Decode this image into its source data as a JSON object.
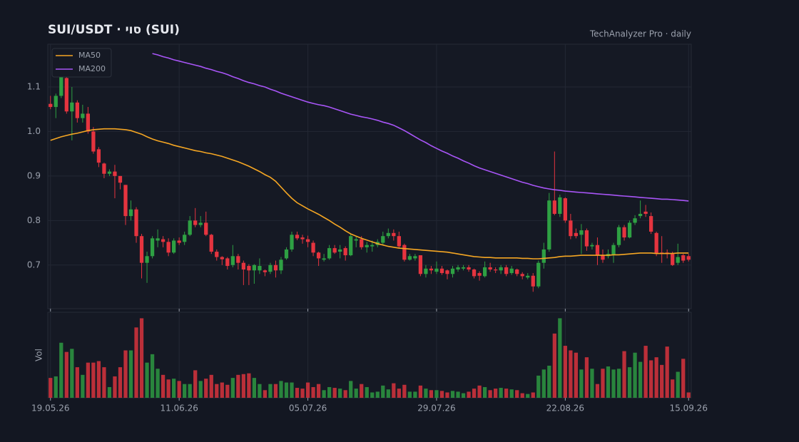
{
  "chart_data": {
    "type": "candlestick",
    "title": "SUI/USDT  ·  סוי (SUI)",
    "subtitle": "TechAnalyzer Pro · daily",
    "volume_label": "Vol",
    "up_color": "#2ea043",
    "down_color": "#e5343f",
    "grid": true,
    "legend": "upper left",
    "xlim": [
      -0.5,
      119.5
    ],
    "xticks": [
      {
        "value": 0,
        "label": "19.05.26"
      },
      {
        "value": 24,
        "label": "11.06.26"
      },
      {
        "value": 48,
        "label": "05.07.26"
      },
      {
        "value": 72,
        "label": "29.07.26"
      },
      {
        "value": 96,
        "label": "22.08.26"
      },
      {
        "value": 119,
        "label": "15.09.26"
      }
    ],
    "ylim": [
      0.602,
      1.196
    ],
    "yticks": [
      0.7,
      0.8,
      0.9,
      {
        "value": 1.0,
        "label": "1.0"
      },
      1.1
    ],
    "volume_ylim": [
      0,
      110
    ],
    "open": [
      1.062,
      1.055,
      1.08,
      1.12,
      1.045,
      1.065,
      1.03,
      1.04,
      1.0,
      0.96,
      0.928,
      0.905,
      0.91,
      0.9,
      0.88,
      0.81,
      0.825,
      0.765,
      0.705,
      0.72,
      0.755,
      0.758,
      0.752,
      0.728,
      0.755,
      0.752,
      0.768,
      0.8,
      0.79,
      0.795,
      0.768,
      0.73,
      0.718,
      0.715,
      0.7,
      0.72,
      0.705,
      0.698,
      0.688,
      0.688,
      0.688,
      0.685,
      0.7,
      0.688,
      0.715,
      0.735,
      0.768,
      0.762,
      0.758,
      0.75,
      0.728,
      0.712,
      0.715,
      0.738,
      0.73,
      0.738,
      0.722,
      0.755,
      0.758,
      0.74,
      0.742,
      0.745,
      0.75,
      0.765,
      0.772,
      0.765,
      0.745,
      0.712,
      0.715,
      0.722,
      0.68,
      0.692,
      0.685,
      0.692,
      0.688,
      0.68,
      0.69,
      0.692,
      0.695,
      0.69,
      0.682,
      0.675,
      0.695,
      0.69,
      0.688,
      0.695,
      0.682,
      0.69,
      0.68,
      0.672,
      0.676,
      0.652,
      0.705,
      0.735,
      0.845,
      0.815,
      0.85,
      0.8,
      0.772,
      0.768,
      0.778,
      0.742,
      0.745,
      0.722,
      0.72,
      0.722,
      0.745,
      0.785,
      0.762,
      0.795,
      0.81,
      0.82,
      0.81,
      0.772,
      0.728,
      0.728,
      0.725,
      0.705,
      0.722,
      0.72
    ],
    "high": [
      1.08,
      1.085,
      1.14,
      1.13,
      1.1,
      1.07,
      1.06,
      1.055,
      1.01,
      0.965,
      0.93,
      0.915,
      0.925,
      0.9,
      0.88,
      0.845,
      0.83,
      0.77,
      0.73,
      0.765,
      0.78,
      0.765,
      0.76,
      0.76,
      0.762,
      0.775,
      0.81,
      0.828,
      0.81,
      0.82,
      0.77,
      0.735,
      0.72,
      0.718,
      0.745,
      0.725,
      0.71,
      0.702,
      0.702,
      0.715,
      0.69,
      0.705,
      0.71,
      0.718,
      0.74,
      0.775,
      0.775,
      0.768,
      0.766,
      0.755,
      0.73,
      0.725,
      0.745,
      0.745,
      0.745,
      0.742,
      0.77,
      0.765,
      0.765,
      0.752,
      0.755,
      0.758,
      0.775,
      0.782,
      0.78,
      0.775,
      0.748,
      0.725,
      0.725,
      0.722,
      0.7,
      0.698,
      0.708,
      0.698,
      0.69,
      0.698,
      0.7,
      0.7,
      0.7,
      0.692,
      0.686,
      0.708,
      0.705,
      0.695,
      0.7,
      0.7,
      0.698,
      0.692,
      0.684,
      0.682,
      0.682,
      0.71,
      0.75,
      0.862,
      0.955,
      0.858,
      0.852,
      0.815,
      0.782,
      0.792,
      0.782,
      0.75,
      0.762,
      0.735,
      0.735,
      0.75,
      0.79,
      0.79,
      0.8,
      0.812,
      0.845,
      0.835,
      0.818,
      0.775,
      0.765,
      0.735,
      0.73,
      0.748,
      0.725,
      0.725
    ],
    "low": [
      1.05,
      1.03,
      1.075,
      1.04,
      0.98,
      1.02,
      1.02,
      0.995,
      0.95,
      0.92,
      0.895,
      0.9,
      0.85,
      0.87,
      0.79,
      0.8,
      0.75,
      0.67,
      0.66,
      0.715,
      0.74,
      0.74,
      0.72,
      0.725,
      0.745,
      0.745,
      0.765,
      0.785,
      0.785,
      0.765,
      0.725,
      0.71,
      0.7,
      0.69,
      0.695,
      0.69,
      0.655,
      0.655,
      0.658,
      0.68,
      0.675,
      0.68,
      0.672,
      0.68,
      0.712,
      0.73,
      0.756,
      0.748,
      0.74,
      0.72,
      0.698,
      0.708,
      0.712,
      0.725,
      0.715,
      0.71,
      0.72,
      0.74,
      0.735,
      0.728,
      0.73,
      0.74,
      0.745,
      0.76,
      0.755,
      0.738,
      0.708,
      0.71,
      0.71,
      0.675,
      0.672,
      0.68,
      0.68,
      0.678,
      0.668,
      0.672,
      0.685,
      0.688,
      0.685,
      0.67,
      0.665,
      0.672,
      0.685,
      0.682,
      0.68,
      0.675,
      0.678,
      0.675,
      0.668,
      0.668,
      0.64,
      0.648,
      0.692,
      0.73,
      0.812,
      0.808,
      0.795,
      0.758,
      0.76,
      0.725,
      0.732,
      0.735,
      0.7,
      0.705,
      0.715,
      0.705,
      0.74,
      0.755,
      0.76,
      0.79,
      0.805,
      0.808,
      0.77,
      0.72,
      0.705,
      0.715,
      0.698,
      0.7,
      0.705,
      0.708
    ],
    "close": [
      1.055,
      1.08,
      1.13,
      1.045,
      1.065,
      1.03,
      1.04,
      1.0,
      0.955,
      0.93,
      0.905,
      0.91,
      0.9,
      0.885,
      0.81,
      0.825,
      0.765,
      0.705,
      0.72,
      0.76,
      0.76,
      0.752,
      0.728,
      0.755,
      0.75,
      0.768,
      0.8,
      0.79,
      0.795,
      0.768,
      0.73,
      0.718,
      0.713,
      0.698,
      0.72,
      0.705,
      0.69,
      0.688,
      0.7,
      0.698,
      0.684,
      0.7,
      0.688,
      0.712,
      0.735,
      0.768,
      0.76,
      0.758,
      0.752,
      0.728,
      0.715,
      0.715,
      0.738,
      0.728,
      0.735,
      0.722,
      0.765,
      0.758,
      0.74,
      0.745,
      0.745,
      0.752,
      0.765,
      0.772,
      0.765,
      0.742,
      0.712,
      0.72,
      0.72,
      0.68,
      0.692,
      0.688,
      0.692,
      0.682,
      0.68,
      0.692,
      0.695,
      0.695,
      0.69,
      0.675,
      0.676,
      0.695,
      0.69,
      0.688,
      0.695,
      0.68,
      0.692,
      0.68,
      0.675,
      0.676,
      0.652,
      0.705,
      0.735,
      0.845,
      0.815,
      0.852,
      0.8,
      0.765,
      0.765,
      0.778,
      0.742,
      0.745,
      0.722,
      0.712,
      0.725,
      0.745,
      0.785,
      0.762,
      0.795,
      0.805,
      0.815,
      0.815,
      0.775,
      0.725,
      0.725,
      0.725,
      0.7,
      0.718,
      0.71,
      0.712
    ],
    "volume": [
      26,
      28,
      72,
      60,
      64,
      40,
      30,
      46,
      46,
      48,
      40,
      14,
      28,
      40,
      62,
      62,
      92,
      104,
      46,
      57,
      38,
      30,
      24,
      25,
      22,
      18,
      18,
      36,
      22,
      25,
      30,
      18,
      20,
      17,
      26,
      30,
      31,
      32,
      26,
      18,
      10,
      18,
      18,
      22,
      20,
      20,
      13,
      12,
      20,
      14,
      18,
      10,
      14,
      13,
      12,
      10,
      22,
      12,
      18,
      14,
      7,
      8,
      16,
      11,
      19,
      12,
      17,
      8,
      8,
      16,
      12,
      10,
      10,
      9,
      7,
      9,
      8,
      6,
      8,
      12,
      16,
      14,
      10,
      12,
      13,
      12,
      11,
      10,
      6,
      5,
      7,
      29,
      37,
      42,
      84,
      104,
      68,
      62,
      59,
      37,
      53,
      38,
      18,
      38,
      41,
      37,
      38,
      61,
      40,
      59,
      47,
      68,
      49,
      53,
      43,
      67,
      24,
      34,
      51,
      7
    ],
    "series": [
      {
        "name": "MA50",
        "color": "#f5a623",
        "values": [
          0.98,
          0.984,
          0.988,
          0.991,
          0.994,
          0.996,
          0.999,
          1.002,
          1.004,
          1.005,
          1.006,
          1.006,
          1.006,
          1.005,
          1.004,
          1.002,
          0.998,
          0.994,
          0.988,
          0.983,
          0.979,
          0.976,
          0.973,
          0.969,
          0.966,
          0.963,
          0.96,
          0.957,
          0.955,
          0.952,
          0.95,
          0.947,
          0.944,
          0.94,
          0.936,
          0.932,
          0.927,
          0.922,
          0.916,
          0.91,
          0.903,
          0.897,
          0.888,
          0.875,
          0.862,
          0.85,
          0.84,
          0.833,
          0.826,
          0.82,
          0.814,
          0.807,
          0.8,
          0.792,
          0.785,
          0.777,
          0.77,
          0.765,
          0.76,
          0.756,
          0.752,
          0.748,
          0.745,
          0.742,
          0.74,
          0.738,
          0.737,
          0.736,
          0.735,
          0.734,
          0.733,
          0.732,
          0.731,
          0.73,
          0.729,
          0.727,
          0.725,
          0.723,
          0.721,
          0.719,
          0.718,
          0.717,
          0.717,
          0.716,
          0.716,
          0.716,
          0.716,
          0.716,
          0.715,
          0.715,
          0.714,
          0.714,
          0.715,
          0.716,
          0.717,
          0.719,
          0.72,
          0.72,
          0.721,
          0.722,
          0.722,
          0.722,
          0.722,
          0.722,
          0.722,
          0.723,
          0.723,
          0.724,
          0.725,
          0.726,
          0.727,
          0.727,
          0.727,
          0.726,
          0.726,
          0.726,
          0.726,
          0.727,
          0.727,
          0.727
        ]
      },
      {
        "name": "MA200",
        "color": "#a855f7",
        "values": [
          null,
          null,
          null,
          null,
          null,
          null,
          null,
          null,
          null,
          null,
          null,
          null,
          null,
          null,
          null,
          null,
          null,
          null,
          null,
          1.175,
          1.172,
          1.168,
          1.165,
          1.161,
          1.158,
          1.155,
          1.152,
          1.149,
          1.146,
          1.142,
          1.139,
          1.135,
          1.132,
          1.128,
          1.123,
          1.119,
          1.114,
          1.11,
          1.107,
          1.103,
          1.1,
          1.095,
          1.091,
          1.086,
          1.082,
          1.078,
          1.074,
          1.07,
          1.066,
          1.063,
          1.06,
          1.058,
          1.055,
          1.051,
          1.047,
          1.043,
          1.039,
          1.036,
          1.033,
          1.031,
          1.028,
          1.025,
          1.021,
          1.018,
          1.014,
          1.008,
          1.002,
          0.995,
          0.988,
          0.981,
          0.975,
          0.968,
          0.962,
          0.956,
          0.951,
          0.945,
          0.94,
          0.934,
          0.929,
          0.923,
          0.918,
          0.914,
          0.91,
          0.906,
          0.902,
          0.898,
          0.894,
          0.89,
          0.886,
          0.883,
          0.879,
          0.876,
          0.873,
          0.871,
          0.869,
          0.868,
          0.866,
          0.865,
          0.864,
          0.863,
          0.862,
          0.861,
          0.86,
          0.859,
          0.858,
          0.857,
          0.856,
          0.855,
          0.854,
          0.853,
          0.852,
          0.851,
          0.85,
          0.849,
          0.848,
          0.848,
          0.847,
          0.846,
          0.845,
          0.844
        ]
      }
    ]
  }
}
